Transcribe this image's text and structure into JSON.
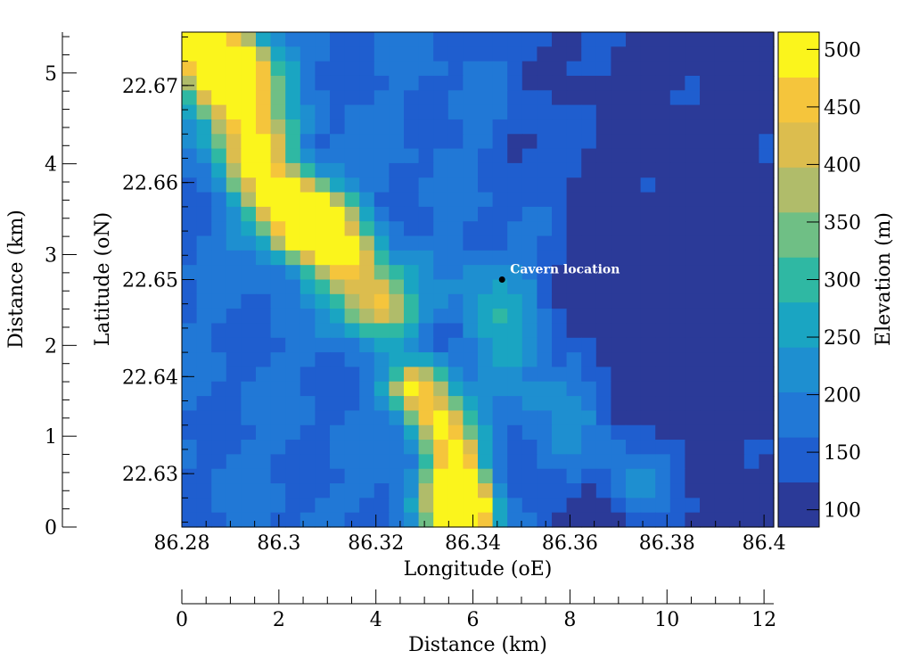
{
  "chart_data": {
    "type": "heatmap",
    "xlabel": "Longitude (oE)",
    "ylabel": "Latitude (oN)",
    "colorbar_label": "Elevation (m)",
    "xlim": [
      86.28,
      86.402
    ],
    "ylim": [
      22.6245,
      22.6755
    ],
    "x_ticks": [
      86.28,
      86.3,
      86.32,
      86.34,
      86.36,
      86.38,
      86.4
    ],
    "x_tick_labels": [
      "86.28",
      "86.3",
      "86.32",
      "86.34",
      "86.36",
      "86.38",
      "86.4"
    ],
    "y_ticks": [
      22.63,
      22.64,
      22.65,
      22.66,
      22.67
    ],
    "y_tick_labels": [
      "22.63",
      "22.64",
      "22.65",
      "22.66",
      "22.67"
    ],
    "colorbar": {
      "range": [
        85,
        515
      ],
      "ticks": [
        100,
        150,
        200,
        250,
        300,
        350,
        400,
        450,
        500
      ],
      "tick_labels": [
        "100",
        "150",
        "200",
        "250",
        "300",
        "350",
        "400",
        "450",
        "500"
      ],
      "colors": [
        "#2b3a98",
        "#1f5ecf",
        "#2178d6",
        "#1e8fd0",
        "#1aa5c2",
        "#2fb8a3",
        "#6fbf85",
        "#b0bc6a",
        "#dcbd4e",
        "#f5c53c",
        "#fbf51c"
      ]
    },
    "secondary_axes": {
      "left_distance": {
        "label": "Distance (km)",
        "range": [
          0,
          5.45
        ],
        "ticks": [
          0,
          1,
          2,
          3,
          4,
          5
        ],
        "tick_labels": [
          "0",
          "1",
          "2",
          "3",
          "4",
          "5"
        ]
      },
      "bottom_distance": {
        "label": "Distance (km)",
        "range": [
          0,
          12.2
        ],
        "ticks": [
          0,
          2,
          4,
          6,
          8,
          10,
          12
        ],
        "tick_labels": [
          "0",
          "2",
          "4",
          "6",
          "8",
          "10",
          "12"
        ]
      }
    },
    "annotation": {
      "text": "Cavern location",
      "lon": 86.346,
      "lat": 22.65
    },
    "grid": false
  }
}
